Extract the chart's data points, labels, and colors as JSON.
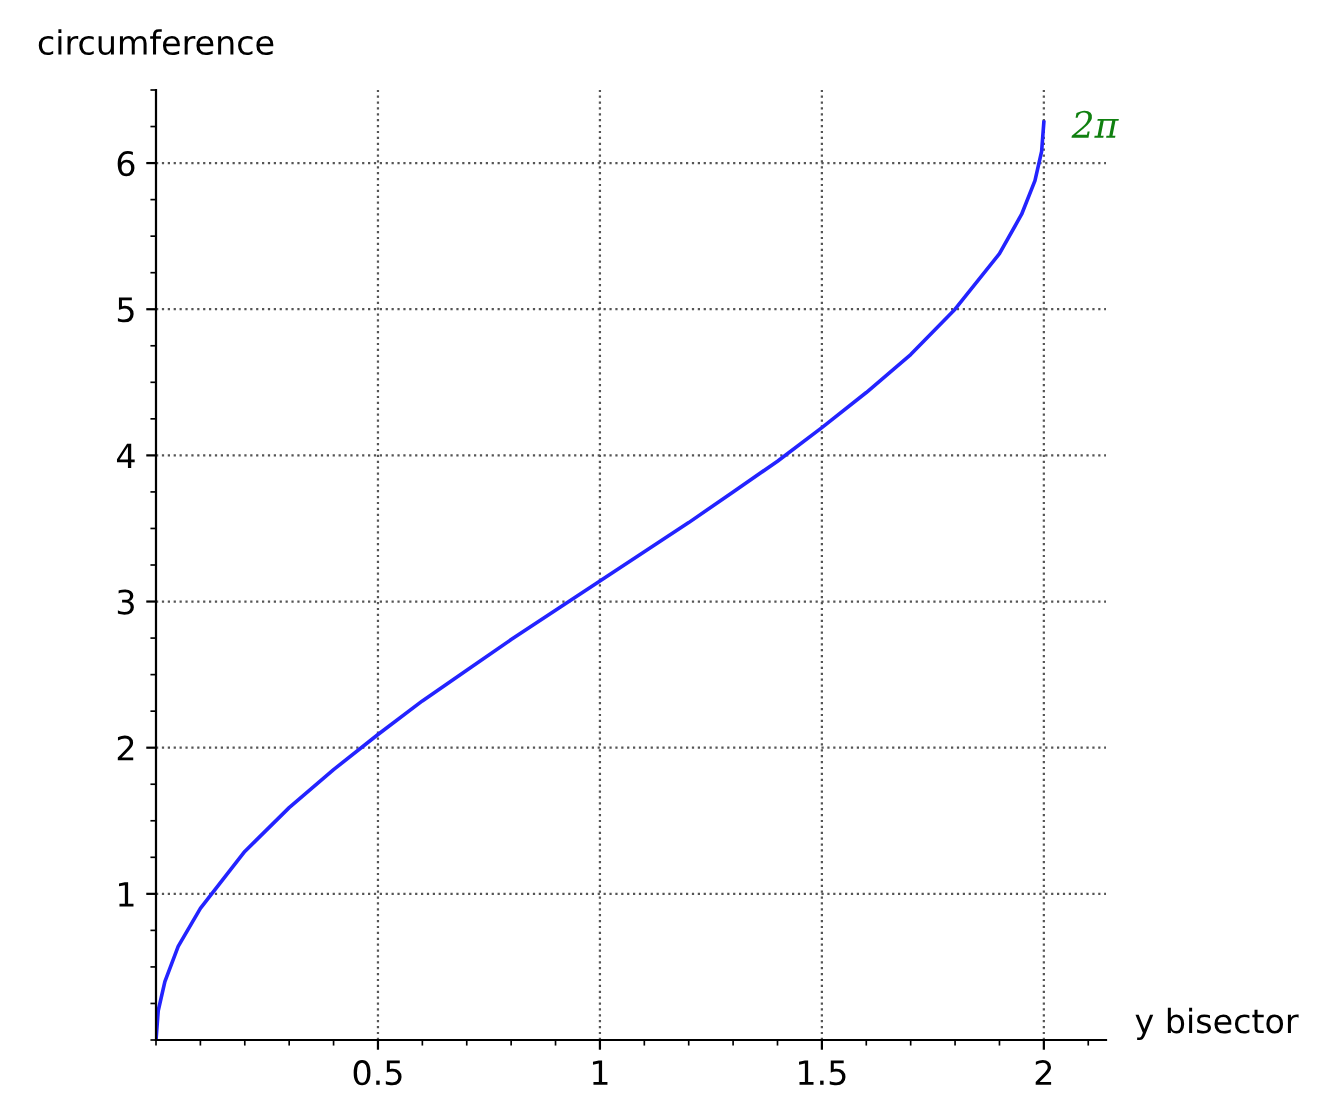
{
  "chart_data": {
    "type": "line",
    "xlabel": "y bisector",
    "ylabel": "circumference",
    "x": [
      0,
      0.005,
      0.02,
      0.05,
      0.1,
      0.2,
      0.3,
      0.4,
      0.5,
      0.6,
      0.7,
      0.8,
      0.9,
      1,
      1.1,
      1.2,
      1.3,
      1.4,
      1.5,
      1.6,
      1.7,
      1.8,
      1.9,
      1.95,
      1.98,
      1.995,
      2
    ],
    "series": [
      {
        "color": "#2323ff",
        "values": [
          0,
          0.2,
          0.4,
          0.64,
          0.9,
          1.29,
          1.59,
          1.85,
          2.09,
          2.32,
          2.53,
          2.74,
          2.94,
          3.14,
          3.34,
          3.54,
          3.75,
          3.96,
          4.19,
          4.43,
          4.69,
          5.0,
          5.38,
          5.65,
          5.88,
          6.08,
          6.28
        ]
      }
    ],
    "xlim": [
      0,
      2.14
    ],
    "ylim": [
      0,
      6.5
    ],
    "xticks": [
      0.5,
      1,
      1.5,
      2
    ],
    "yticks": [
      1,
      2,
      3,
      4,
      5,
      6
    ],
    "grid": true,
    "line_style": "solid",
    "marker": "none",
    "annotations": [
      {
        "text": "2π",
        "x": 2,
        "y": 6.28
      }
    ]
  }
}
